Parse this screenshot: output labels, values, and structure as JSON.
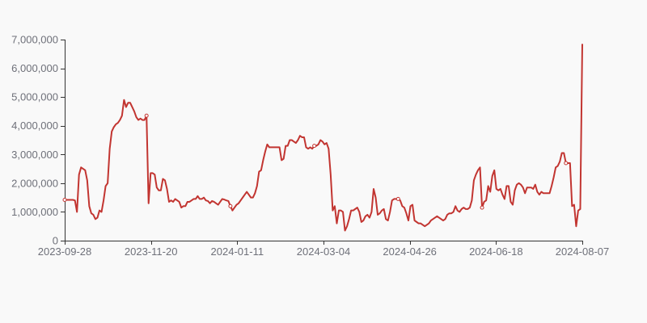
{
  "chart_data": {
    "type": "line",
    "title": "",
    "xlabel": "",
    "ylabel": "",
    "x_tick_labels": [
      "2023-09-28",
      "2023-11-20",
      "2024-01-11",
      "2024-03-04",
      "2024-04-26",
      "2024-06-18",
      "2024-08-07"
    ],
    "y_tick_labels": [
      "0",
      "1,000,000",
      "2,000,000",
      "3,000,000",
      "4,000,000",
      "5,000,000",
      "6,000,000",
      "7,000,000"
    ],
    "ylim": [
      0,
      7000000
    ],
    "grid": false,
    "colors": {
      "line": "#c23531",
      "axis": "#333333",
      "text": "#6e7079"
    },
    "series": [
      {
        "values": [
          1420000,
          1420000,
          1420000,
          1420000,
          1420000,
          1400000,
          1000000,
          2300000,
          2550000,
          2500000,
          2450000,
          2100000,
          1200000,
          950000,
          900000,
          750000,
          800000,
          1050000,
          1000000,
          1400000,
          1900000,
          2000000,
          3200000,
          3800000,
          3950000,
          4050000,
          4100000,
          4200000,
          4350000,
          4900000,
          4650000,
          4800000,
          4800000,
          4650000,
          4500000,
          4300000,
          4200000,
          4250000,
          4200000,
          4200000,
          4350000,
          1300000,
          2350000,
          2350000,
          2300000,
          1850000,
          1750000,
          1750000,
          2150000,
          2100000,
          1800000,
          1350000,
          1400000,
          1350000,
          1450000,
          1400000,
          1350000,
          1150000,
          1200000,
          1200000,
          1350000,
          1350000,
          1400000,
          1450000,
          1450000,
          1550000,
          1450000,
          1450000,
          1500000,
          1400000,
          1380000,
          1300000,
          1380000,
          1350000,
          1300000,
          1250000,
          1350000,
          1450000,
          1430000,
          1400000,
          1380000,
          1200000,
          1050000,
          1150000,
          1250000,
          1300000,
          1400000,
          1500000,
          1600000,
          1700000,
          1600000,
          1500000,
          1500000,
          1650000,
          1900000,
          2400000,
          2450000,
          2800000,
          3100000,
          3350000,
          3250000,
          3250000,
          3250000,
          3250000,
          3250000,
          3250000,
          2800000,
          2850000,
          3300000,
          3300000,
          3500000,
          3500000,
          3450000,
          3400000,
          3500000,
          3650000,
          3600000,
          3600000,
          3250000,
          3200000,
          3250000,
          3200000,
          3300000,
          3300000,
          3350000,
          3500000,
          3450000,
          3350000,
          3400000,
          3200000,
          2300000,
          1050000,
          1200000,
          600000,
          1050000,
          1050000,
          1000000,
          350000,
          500000,
          750000,
          1050000,
          1050000,
          1100000,
          1150000,
          1000000,
          650000,
          700000,
          850000,
          900000,
          800000,
          1000000,
          1800000,
          1500000,
          900000,
          950000,
          1050000,
          1100000,
          750000,
          700000,
          1000000,
          1400000,
          1450000,
          1450000,
          1450000,
          1400000,
          1200000,
          1150000,
          950000,
          700000,
          1200000,
          1250000,
          700000,
          650000,
          600000,
          600000,
          550000,
          500000,
          550000,
          600000,
          700000,
          750000,
          800000,
          850000,
          800000,
          750000,
          700000,
          750000,
          900000,
          950000,
          950000,
          1000000,
          1200000,
          1050000,
          1000000,
          1100000,
          1150000,
          1100000,
          1100000,
          1150000,
          1400000,
          2100000,
          2300000,
          2450000,
          2550000,
          1150000,
          1350000,
          1400000,
          1900000,
          1700000,
          2250000,
          2450000,
          1800000,
          1750000,
          1800000,
          1600000,
          1450000,
          1900000,
          1900000,
          1350000,
          1250000,
          1750000,
          1950000,
          2000000,
          1950000,
          1850000,
          1650000,
          1850000,
          1850000,
          1850000,
          1800000,
          1950000,
          1700000,
          1600000,
          1700000,
          1650000,
          1650000,
          1650000,
          1650000,
          1900000,
          2200000,
          2550000,
          2600000,
          2750000,
          3050000,
          3050000,
          2700000,
          2700000,
          2700000,
          1200000,
          1250000,
          500000,
          1050000,
          1100000,
          6850000
        ],
        "markers": [
          0,
          40,
          81,
          122,
          163,
          204,
          245
        ]
      }
    ]
  }
}
